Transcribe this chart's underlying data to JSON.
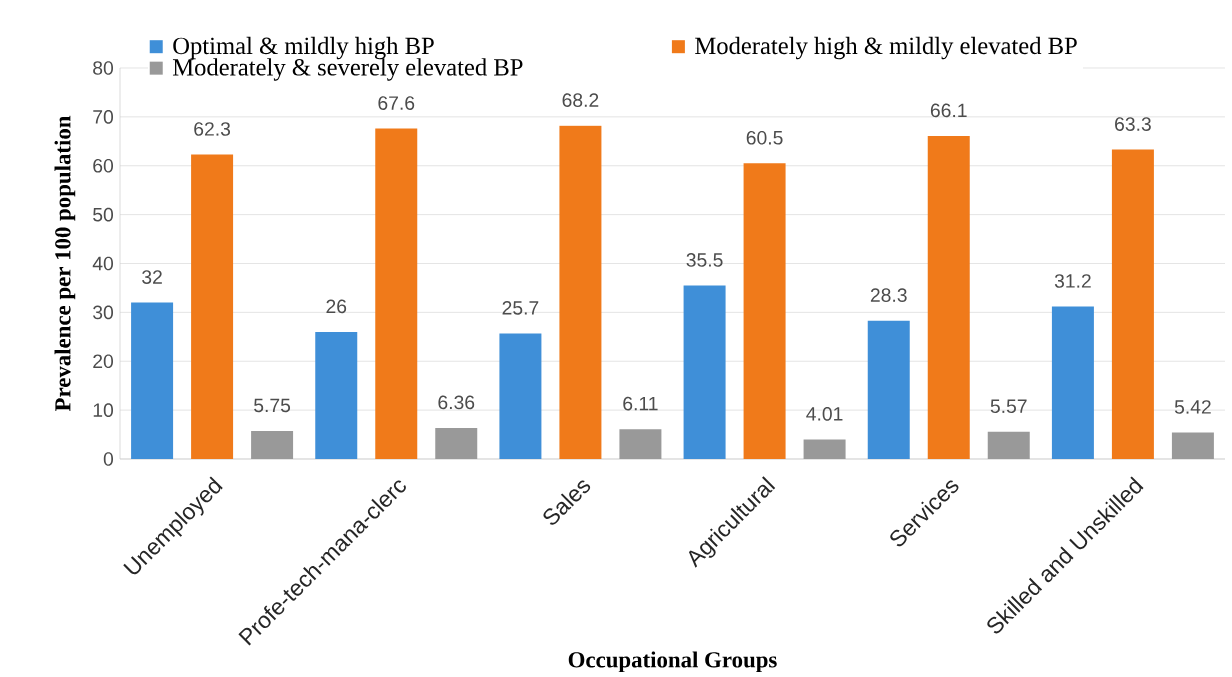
{
  "chart_data": {
    "type": "bar",
    "xlabel": "Occupational Groups",
    "ylabel": "Prevalence per 100 population",
    "categories": [
      "Unemployed",
      "Profe-tech-mana-clerc",
      "Sales",
      "Agricultural",
      "Services",
      "Skilled and Unskilled"
    ],
    "series": [
      {
        "name": "Optimal & mildly high  BP",
        "color": "#3f8fd8",
        "values": [
          32,
          26,
          25.7,
          35.5,
          28.3,
          31.2
        ]
      },
      {
        "name": "Moderately high & mildly elevated BP",
        "color": "#f07a1a",
        "values": [
          62.3,
          67.6,
          68.2,
          60.5,
          66.1,
          63.3
        ]
      },
      {
        "name": "Moderately & severely elevated BP",
        "color": "#999999",
        "values": [
          5.75,
          6.36,
          6.11,
          4.01,
          5.57,
          5.42
        ]
      }
    ],
    "ylim": [
      0,
      80
    ],
    "yticks": [
      0,
      10,
      20,
      30,
      40,
      50,
      60,
      70,
      80
    ],
    "grid": "y",
    "legend": "top",
    "data_labels": true
  }
}
